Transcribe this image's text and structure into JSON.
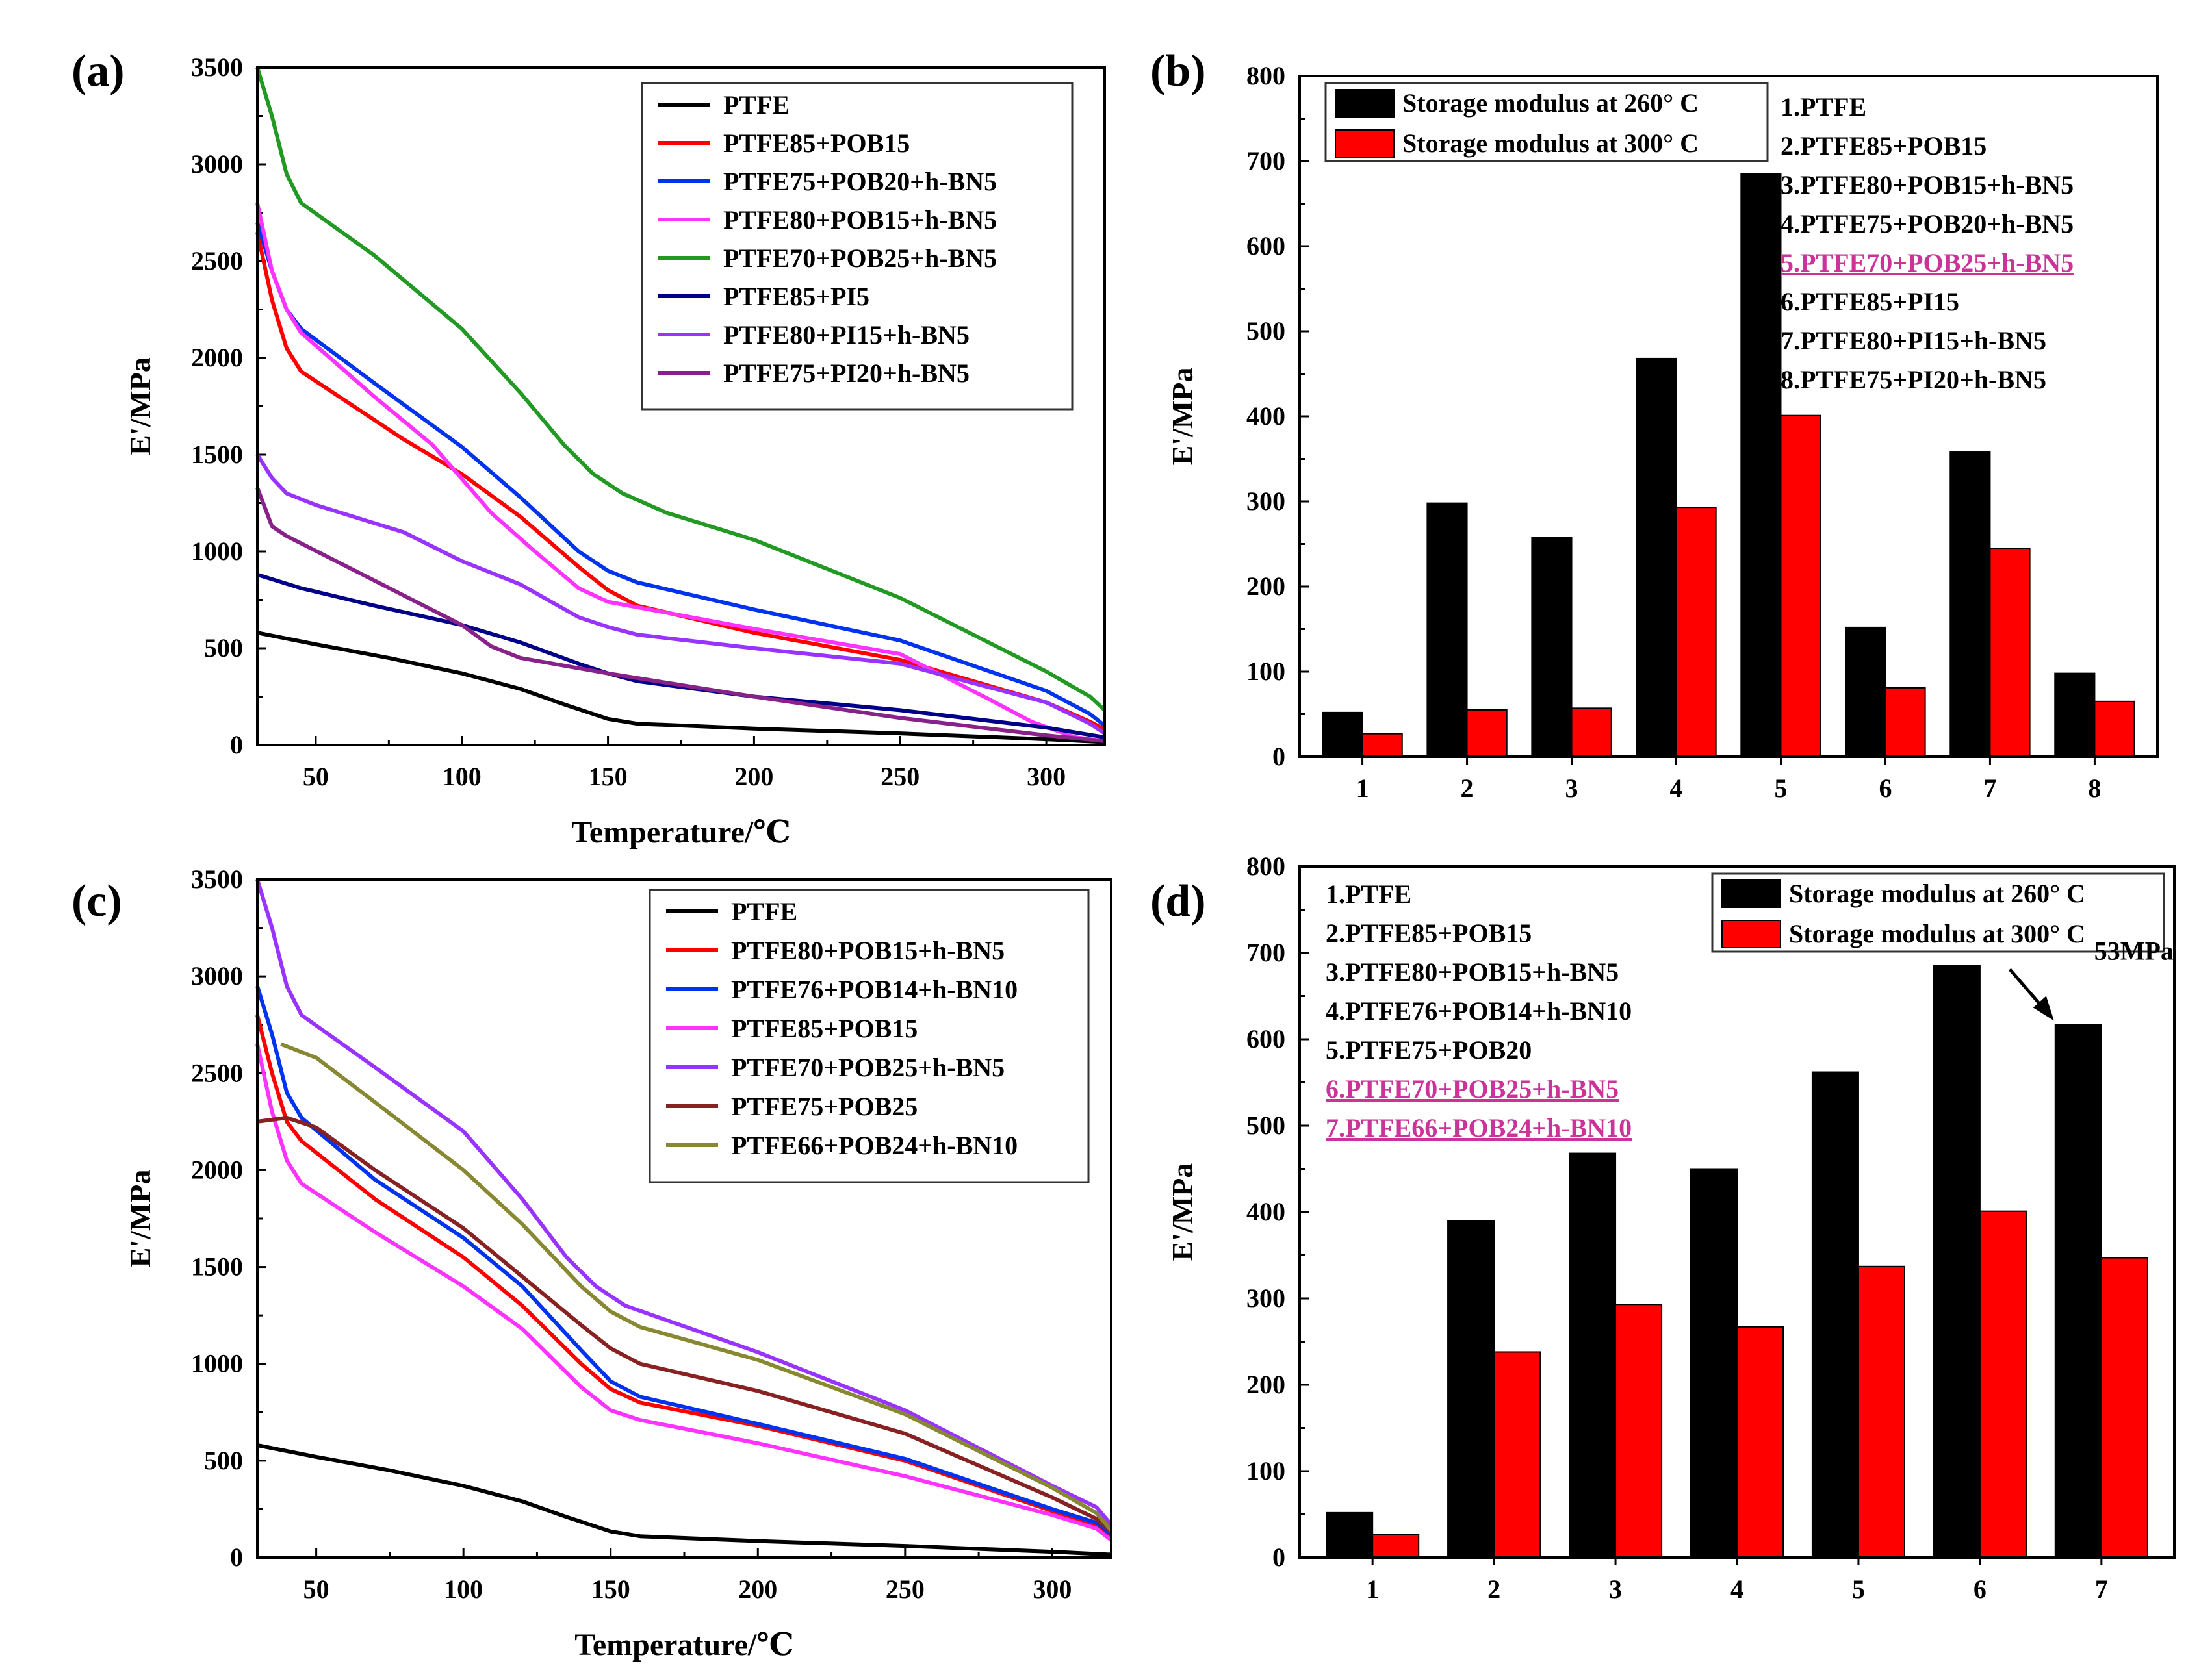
{
  "chart_data": [
    {
      "id": "a",
      "panel_label": "(a)",
      "type": "line",
      "title": "",
      "xlabel": "Temperature/℃",
      "ylabel": "E'/MPa",
      "xlim": [
        30,
        320
      ],
      "ylim": [
        0,
        3500
      ],
      "x_ticks": [
        50,
        100,
        150,
        200,
        250,
        300
      ],
      "y_ticks": [
        0,
        500,
        1000,
        1500,
        2000,
        2500,
        3000,
        3500
      ],
      "legend_position": "top-right",
      "series": [
        {
          "name": "PTFE",
          "color": "#000000",
          "points": [
            [
              30,
              580
            ],
            [
              50,
              520
            ],
            [
              75,
              450
            ],
            [
              100,
              370
            ],
            [
              120,
              290
            ],
            [
              135,
              210
            ],
            [
              150,
              135
            ],
            [
              160,
              110
            ],
            [
              200,
              85
            ],
            [
              250,
              60
            ],
            [
              300,
              30
            ],
            [
              320,
              15
            ]
          ]
        },
        {
          "name": "PTFE85+POB15",
          "color": "#ff0000",
          "points": [
            [
              30,
              2650
            ],
            [
              35,
              2300
            ],
            [
              40,
              2050
            ],
            [
              45,
              1930
            ],
            [
              60,
              1780
            ],
            [
              80,
              1580
            ],
            [
              100,
              1400
            ],
            [
              120,
              1180
            ],
            [
              140,
              920
            ],
            [
              150,
              800
            ],
            [
              160,
              720
            ],
            [
              200,
              580
            ],
            [
              250,
              440
            ],
            [
              300,
              220
            ],
            [
              315,
              120
            ],
            [
              320,
              80
            ]
          ]
        },
        {
          "name": "PTFE75+POB20+h-BN5",
          "color": "#0033ee",
          "points": [
            [
              30,
              2700
            ],
            [
              35,
              2450
            ],
            [
              40,
              2250
            ],
            [
              45,
              2150
            ],
            [
              70,
              1870
            ],
            [
              100,
              1540
            ],
            [
              120,
              1280
            ],
            [
              140,
              1000
            ],
            [
              150,
              900
            ],
            [
              160,
              840
            ],
            [
              200,
              700
            ],
            [
              250,
              540
            ],
            [
              300,
              280
            ],
            [
              315,
              160
            ],
            [
              320,
              100
            ]
          ]
        },
        {
          "name": "PTFE80+POB15+h-BN5",
          "color": "#ff33ff",
          "points": [
            [
              30,
              2800
            ],
            [
              35,
              2450
            ],
            [
              40,
              2250
            ],
            [
              45,
              2130
            ],
            [
              70,
              1800
            ],
            [
              90,
              1550
            ],
            [
              110,
              1200
            ],
            [
              125,
              1000
            ],
            [
              140,
              810
            ],
            [
              150,
              740
            ],
            [
              200,
              600
            ],
            [
              250,
              470
            ],
            [
              280,
              240
            ],
            [
              295,
              120
            ],
            [
              310,
              40
            ],
            [
              320,
              20
            ]
          ]
        },
        {
          "name": "PTFE70+POB25+h-BN5",
          "color": "#229922",
          "points": [
            [
              30,
              3500
            ],
            [
              35,
              3250
            ],
            [
              40,
              2950
            ],
            [
              45,
              2800
            ],
            [
              70,
              2530
            ],
            [
              100,
              2150
            ],
            [
              120,
              1820
            ],
            [
              135,
              1550
            ],
            [
              145,
              1400
            ],
            [
              155,
              1300
            ],
            [
              170,
              1200
            ],
            [
              200,
              1060
            ],
            [
              250,
              760
            ],
            [
              300,
              380
            ],
            [
              315,
              250
            ],
            [
              320,
              180
            ]
          ]
        },
        {
          "name": "PTFE85+PI5",
          "color": "#000088",
          "points": [
            [
              30,
              880
            ],
            [
              45,
              810
            ],
            [
              70,
              720
            ],
            [
              100,
              620
            ],
            [
              120,
              530
            ],
            [
              140,
              420
            ],
            [
              150,
              370
            ],
            [
              160,
              330
            ],
            [
              200,
              250
            ],
            [
              250,
              180
            ],
            [
              300,
              90
            ],
            [
              320,
              40
            ]
          ]
        },
        {
          "name": "PTFE80+PI15+h-BN5",
          "color": "#9933ff",
          "points": [
            [
              30,
              1500
            ],
            [
              35,
              1380
            ],
            [
              40,
              1300
            ],
            [
              50,
              1240
            ],
            [
              80,
              1100
            ],
            [
              100,
              950
            ],
            [
              120,
              830
            ],
            [
              140,
              660
            ],
            [
              150,
              610
            ],
            [
              160,
              570
            ],
            [
              200,
              500
            ],
            [
              250,
              420
            ],
            [
              300,
              220
            ],
            [
              315,
              110
            ],
            [
              320,
              60
            ]
          ]
        },
        {
          "name": "PTFE75+PI20+h-BN5",
          "color": "#882288",
          "points": [
            [
              30,
              1330
            ],
            [
              35,
              1130
            ],
            [
              40,
              1080
            ],
            [
              70,
              850
            ],
            [
              100,
              620
            ],
            [
              110,
              510
            ],
            [
              120,
              450
            ],
            [
              150,
              370
            ],
            [
              200,
              250
            ],
            [
              250,
              140
            ],
            [
              300,
              50
            ],
            [
              320,
              20
            ]
          ]
        }
      ]
    },
    {
      "id": "b",
      "panel_label": "(b)",
      "type": "bar",
      "title": "",
      "xlabel": "",
      "ylabel": "E'/MPa",
      "ylim": [
        0,
        800
      ],
      "y_ticks": [
        0,
        100,
        200,
        300,
        400,
        500,
        600,
        700,
        800
      ],
      "categories": [
        "1",
        "2",
        "3",
        "4",
        "5",
        "6",
        "7",
        "8"
      ],
      "series": [
        {
          "name": "Storage modulus at 260° C",
          "color": "#000000",
          "values": [
            52,
            298,
            258,
            468,
            685,
            152,
            358,
            98
          ]
        },
        {
          "name": "Storage modulus at 300° C",
          "color": "#ff0000",
          "values": [
            27,
            55,
            57,
            293,
            401,
            81,
            245,
            65
          ]
        }
      ],
      "legend_position": "top-left",
      "sample_list": [
        "1.PTFE",
        "2.PTFE85+POB15",
        "3.PTFE80+POB15+h-BN5",
        "4.PTFE75+POB20+h-BN5",
        "5.PTFE70+POB25+h-BN5",
        "6.PTFE85+PI15",
        "7.PTFE80+PI15+h-BN5",
        "8.PTFE75+PI20+h-BN5"
      ],
      "highlighted_samples": [
        5
      ],
      "highlight_color": "#cc3399"
    },
    {
      "id": "c",
      "panel_label": "(c)",
      "type": "line",
      "title": "",
      "xlabel": "Temperature/℃",
      "ylabel": "E'/MPa",
      "xlim": [
        30,
        320
      ],
      "ylim": [
        0,
        3500
      ],
      "x_ticks": [
        50,
        100,
        150,
        200,
        250,
        300
      ],
      "y_ticks": [
        0,
        500,
        1000,
        1500,
        2000,
        2500,
        3000,
        3500
      ],
      "legend_position": "top-right",
      "series": [
        {
          "name": "PTFE",
          "color": "#000000",
          "points": [
            [
              30,
              580
            ],
            [
              50,
              520
            ],
            [
              75,
              450
            ],
            [
              100,
              370
            ],
            [
              120,
              290
            ],
            [
              135,
              210
            ],
            [
              150,
              135
            ],
            [
              160,
              110
            ],
            [
              200,
              85
            ],
            [
              250,
              60
            ],
            [
              300,
              30
            ],
            [
              320,
              15
            ]
          ]
        },
        {
          "name": "PTFE80+POB15+h-BN5",
          "color": "#ff0000",
          "points": [
            [
              30,
              2800
            ],
            [
              35,
              2500
            ],
            [
              40,
              2250
            ],
            [
              45,
              2150
            ],
            [
              70,
              1850
            ],
            [
              100,
              1550
            ],
            [
              120,
              1300
            ],
            [
              140,
              1000
            ],
            [
              150,
              870
            ],
            [
              160,
              800
            ],
            [
              200,
              680
            ],
            [
              250,
              500
            ],
            [
              300,
              240
            ],
            [
              315,
              170
            ],
            [
              320,
              110
            ]
          ]
        },
        {
          "name": "PTFE76+POB14+h-BN10",
          "color": "#0033ee",
          "points": [
            [
              30,
              2950
            ],
            [
              35,
              2700
            ],
            [
              40,
              2400
            ],
            [
              45,
              2270
            ],
            [
              70,
              1950
            ],
            [
              100,
              1650
            ],
            [
              120,
              1400
            ],
            [
              140,
              1070
            ],
            [
              150,
              910
            ],
            [
              160,
              830
            ],
            [
              200,
              690
            ],
            [
              250,
              510
            ],
            [
              300,
              250
            ],
            [
              315,
              180
            ],
            [
              320,
              120
            ]
          ]
        },
        {
          "name": "PTFE85+POB15",
          "color": "#ff33ff",
          "points": [
            [
              30,
              2650
            ],
            [
              35,
              2300
            ],
            [
              40,
              2050
            ],
            [
              45,
              1930
            ],
            [
              70,
              1680
            ],
            [
              100,
              1400
            ],
            [
              120,
              1180
            ],
            [
              140,
              880
            ],
            [
              150,
              760
            ],
            [
              160,
              710
            ],
            [
              200,
              590
            ],
            [
              250,
              420
            ],
            [
              300,
              220
            ],
            [
              315,
              150
            ],
            [
              320,
              90
            ]
          ]
        },
        {
          "name": "PTFE70+POB25+h-BN5",
          "color": "#9933ff",
          "points": [
            [
              30,
              3500
            ],
            [
              35,
              3250
            ],
            [
              40,
              2950
            ],
            [
              45,
              2800
            ],
            [
              70,
              2530
            ],
            [
              100,
              2200
            ],
            [
              120,
              1850
            ],
            [
              135,
              1550
            ],
            [
              145,
              1400
            ],
            [
              155,
              1300
            ],
            [
              170,
              1220
            ],
            [
              200,
              1060
            ],
            [
              250,
              760
            ],
            [
              300,
              370
            ],
            [
              315,
              260
            ],
            [
              320,
              170
            ]
          ]
        },
        {
          "name": "PTFE75+POB25",
          "color": "#882222",
          "points": [
            [
              30,
              2250
            ],
            [
              40,
              2270
            ],
            [
              50,
              2220
            ],
            [
              70,
              2000
            ],
            [
              100,
              1700
            ],
            [
              120,
              1450
            ],
            [
              140,
              1200
            ],
            [
              150,
              1080
            ],
            [
              160,
              1000
            ],
            [
              200,
              860
            ],
            [
              250,
              640
            ],
            [
              300,
              310
            ],
            [
              315,
              200
            ],
            [
              320,
              130
            ]
          ]
        },
        {
          "name": "PTFE66+POB24+h-BN10",
          "color": "#888833",
          "points": [
            [
              38,
              2650
            ],
            [
              50,
              2580
            ],
            [
              70,
              2350
            ],
            [
              100,
              2000
            ],
            [
              120,
              1720
            ],
            [
              140,
              1400
            ],
            [
              150,
              1270
            ],
            [
              160,
              1190
            ],
            [
              200,
              1020
            ],
            [
              250,
              740
            ],
            [
              300,
              360
            ],
            [
              315,
              230
            ],
            [
              320,
              140
            ]
          ]
        }
      ]
    },
    {
      "id": "d",
      "panel_label": "(d)",
      "type": "bar",
      "title": "",
      "xlabel": "",
      "ylabel": "E'/MPa",
      "ylim": [
        0,
        800
      ],
      "y_ticks": [
        0,
        100,
        200,
        300,
        400,
        500,
        600,
        700,
        800
      ],
      "categories": [
        "1",
        "2",
        "3",
        "4",
        "5",
        "6",
        "7"
      ],
      "series": [
        {
          "name": "Storage modulus at 260° C",
          "color": "#000000",
          "values": [
            52,
            390,
            468,
            450,
            562,
            685,
            617
          ]
        },
        {
          "name": "Storage modulus at 300° C",
          "color": "#ff0000",
          "values": [
            27,
            238,
            293,
            267,
            337,
            401,
            347
          ]
        }
      ],
      "legend_position": "top-right",
      "sample_list": [
        "1.PTFE",
        "2.PTFE85+POB15",
        "3.PTFE80+POB15+h-BN5",
        "4.PTFE76+POB14+h-BN10",
        "5.PTFE75+POB20",
        "6.PTFE70+POB25+h-BN5",
        "7.PTFE66+POB24+h-BN10"
      ],
      "highlighted_samples": [
        6,
        7
      ],
      "highlight_color": "#cc3399",
      "annotation": {
        "text": "53MPa",
        "target_category": "7"
      }
    }
  ]
}
